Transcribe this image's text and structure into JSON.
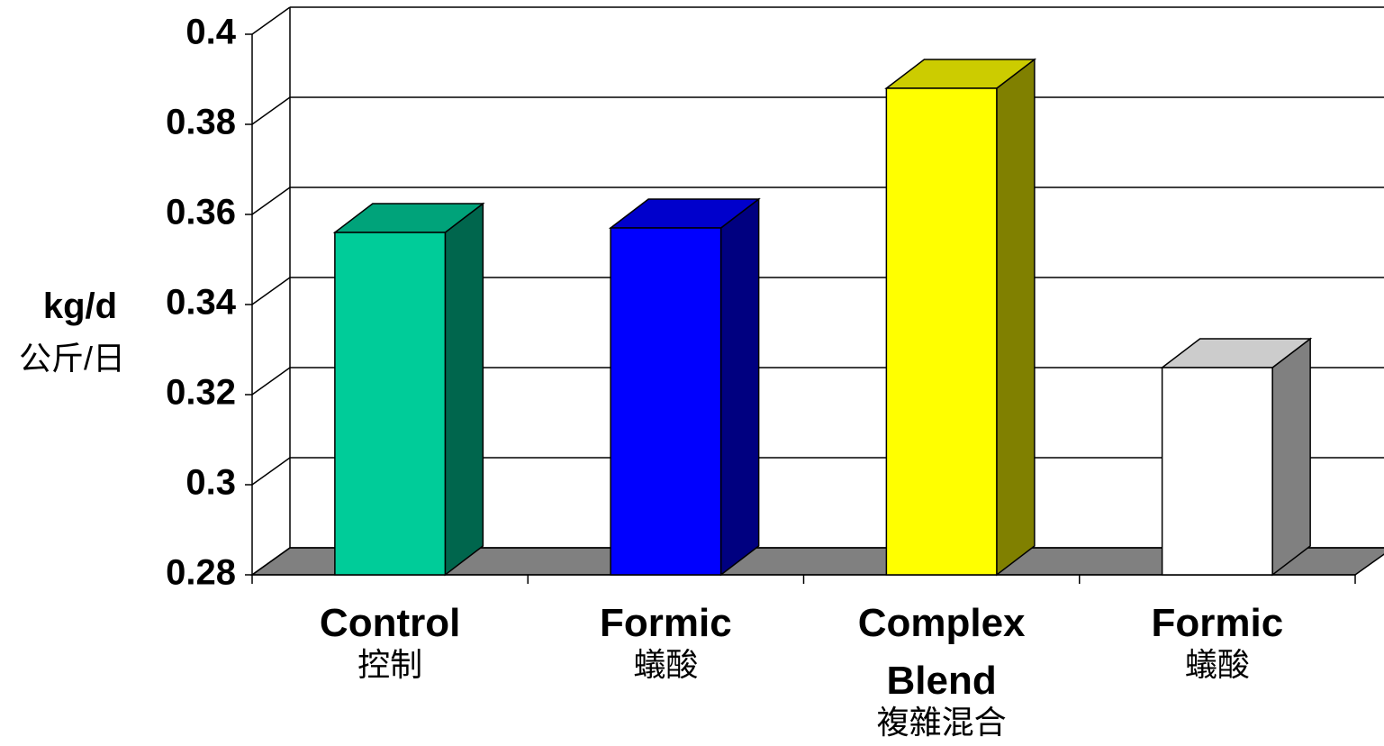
{
  "chart_data": {
    "type": "bar3d",
    "y_label": "kg/d",
    "y_label_zh": "公斤/日",
    "categories": [
      "Control",
      "Formic",
      "Complex Blend",
      "Formic"
    ],
    "categories_zh": [
      "控制",
      "蟻酸",
      "複雜混合",
      "蟻酸"
    ],
    "values": [
      0.356,
      0.357,
      0.388,
      0.326
    ],
    "colors": [
      "#00cc99",
      "#0000ff",
      "#ffff00",
      "#ffffff"
    ],
    "ylim": [
      0.28,
      0.4
    ],
    "yticks": [
      0.28,
      0.3,
      0.32,
      0.34,
      0.36,
      0.38,
      0.4
    ],
    "grid": true
  }
}
